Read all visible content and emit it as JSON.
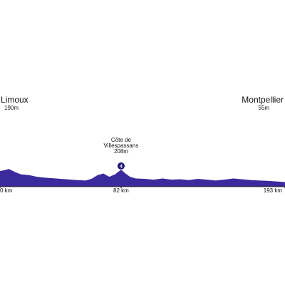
{
  "chart_data": {
    "type": "area",
    "color": "#3a2a9c",
    "start": "Limoux",
    "finish": "Montpellier",
    "x": [
      0,
      3,
      6,
      10,
      14,
      20,
      25,
      30,
      38,
      45,
      52,
      58,
      62,
      66,
      70,
      74,
      78,
      82,
      85,
      88,
      92,
      98,
      104,
      110,
      116,
      122,
      128,
      134,
      140,
      146,
      152,
      158,
      164,
      170,
      176,
      182,
      186,
      190,
      193
    ],
    "values": [
      190,
      200,
      215,
      180,
      150,
      140,
      120,
      110,
      100,
      90,
      80,
      75,
      95,
      140,
      160,
      120,
      150,
      208,
      160,
      120,
      100,
      95,
      85,
      100,
      85,
      90,
      80,
      95,
      85,
      75,
      85,
      100,
      90,
      80,
      75,
      70,
      65,
      60,
      55
    ],
    "value_labels": [
      "190m",
      null,
      null,
      null,
      null,
      null,
      null,
      null,
      null,
      null,
      null,
      null,
      null,
      null,
      null,
      null,
      null,
      "208m",
      null,
      null,
      null,
      null,
      null,
      null,
      null,
      null,
      null,
      null,
      null,
      null,
      null,
      null,
      null,
      null,
      null,
      null,
      null,
      null,
      "55m"
    ],
    "climbs": [
      {
        "name_lines": [
          "Côte de",
          "Villespassans"
        ],
        "category": "4"
      }
    ],
    "xlim": [
      0,
      193
    ],
    "ylim": [
      0,
      2000
    ],
    "xticks": [
      {
        "value": 0,
        "label": "0 km"
      },
      {
        "value": 82,
        "label": "82 km"
      },
      {
        "value": 193,
        "label": "193 km"
      }
    ]
  }
}
